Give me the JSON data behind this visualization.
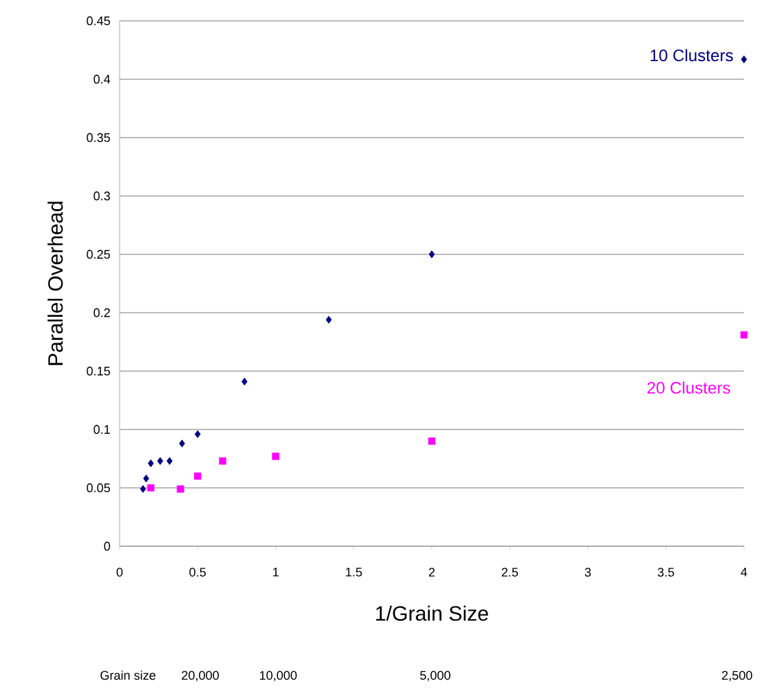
{
  "chart_data": {
    "type": "scatter",
    "xlabel": "1/Grain Size",
    "ylabel": "Parallel Overhead",
    "xlim": [
      0,
      4
    ],
    "xticks": [
      0,
      0.5,
      1,
      1.5,
      2,
      2.5,
      3,
      3.5,
      4
    ],
    "ylim": [
      0,
      0.45
    ],
    "yticks": [
      0,
      0.05,
      0.1,
      0.15,
      0.2,
      0.25,
      0.3,
      0.35,
      0.4,
      0.45
    ],
    "annotations": [
      "Grain size",
      "20,000",
      "10,000",
      "5,000",
      "2,500"
    ],
    "grid": "y",
    "series": [
      {
        "name": "10 Clusters",
        "color": "#000080",
        "marker": "diamond",
        "x": [
          0.15,
          0.17,
          0.2,
          0.26,
          0.32,
          0.4,
          0.5,
          0.8,
          1.34,
          2,
          4
        ],
        "values": [
          0.049,
          0.058,
          0.071,
          0.073,
          0.073,
          0.088,
          0.096,
          0.141,
          0.194,
          0.25,
          0.417
        ]
      },
      {
        "name": "20 Clusters",
        "color": "#ff00ff",
        "marker": "square",
        "x": [
          0.2,
          0.39,
          0.5,
          0.66,
          1,
          2,
          4
        ],
        "values": [
          0.05,
          0.049,
          0.06,
          0.073,
          0.077,
          0.09,
          0.181
        ]
      }
    ]
  }
}
